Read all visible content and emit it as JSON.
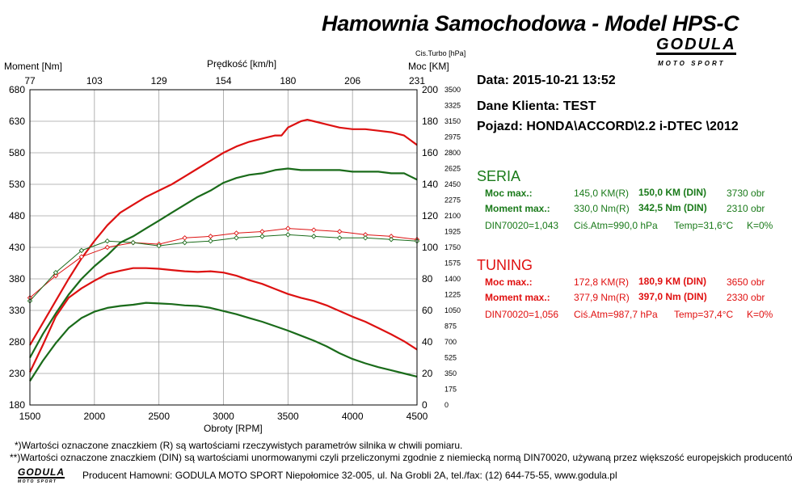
{
  "header": {
    "title": "Hamownia Samochodowa   -   Model HPS-C",
    "logo_word": "GODULA",
    "logo_sub": "MOTO SPORT"
  },
  "chart_data": {
    "type": "line",
    "x_axis": {
      "label": "Obroty [RPM]",
      "min": 1500,
      "max": 4500,
      "ticks": [
        "1500",
        "2000",
        "2500",
        "3000",
        "3500",
        "4000",
        "4500"
      ]
    },
    "top_axis": {
      "label": "Prędkość [km/h]",
      "ticks": [
        "77",
        "103",
        "129",
        "154",
        "180",
        "206",
        "231"
      ]
    },
    "left_axis": {
      "label": "Moment [Nm]",
      "min": 180,
      "max": 680,
      "ticks": [
        "680",
        "630",
        "580",
        "530",
        "480",
        "430",
        "380",
        "330",
        "280",
        "230",
        "180"
      ]
    },
    "right_axis": {
      "label": "Moc [KM]",
      "min": 0,
      "max": 200,
      "ticks": [
        "200",
        "180",
        "160",
        "140",
        "120",
        "100",
        "80",
        "60",
        "40",
        "20",
        "0"
      ]
    },
    "turbo_axis": {
      "label": "Cis.Turbo [hPa]",
      "ticks": [
        "3500",
        "3325",
        "3150",
        "2975",
        "2800",
        "2625",
        "2450",
        "2275",
        "2100",
        "1925",
        "1750",
        "1575",
        "1400",
        "1225",
        "1050",
        "875",
        "700",
        "525",
        "350",
        "175",
        "0"
      ]
    },
    "grid": true,
    "series": [
      {
        "name": "",
        "color": "#dd1111",
        "axis": "power",
        "marker": "none",
        "x": [
          1500,
          1600,
          1700,
          1800,
          1900,
          2000,
          2100,
          2200,
          2300,
          2400,
          2500,
          2600,
          2700,
          2800,
          2900,
          3000,
          3100,
          3200,
          3300,
          3400,
          3450,
          3500,
          3600,
          3650,
          3700,
          3800,
          3900,
          4000,
          4100,
          4200,
          4300,
          4400,
          4500
        ],
        "y": [
          38,
          52,
          66,
          80,
          93,
          104,
          114,
          122,
          127,
          132,
          136,
          140,
          145,
          150,
          155,
          160,
          164,
          167,
          169,
          171,
          171,
          176,
          180,
          181,
          180,
          178,
          176,
          175,
          175,
          174,
          173,
          171,
          165
        ]
      },
      {
        "name": "",
        "color": "#1a6b1a",
        "axis": "power",
        "marker": "none",
        "x": [
          1500,
          1600,
          1700,
          1800,
          1900,
          2000,
          2100,
          2200,
          2300,
          2400,
          2500,
          2600,
          2700,
          2800,
          2900,
          3000,
          3100,
          3200,
          3300,
          3400,
          3500,
          3600,
          3700,
          3800,
          3900,
          4000,
          4100,
          4200,
          4300,
          4400,
          4500
        ],
        "y": [
          30,
          45,
          58,
          70,
          80,
          88,
          95,
          103,
          107,
          112,
          117,
          122,
          127,
          132,
          136,
          141,
          144,
          146,
          147,
          149,
          150,
          149,
          149,
          149,
          149,
          148,
          148,
          148,
          147,
          147,
          143
        ]
      },
      {
        "name": "",
        "color": "#dd1111",
        "axis": "torque",
        "marker": "none",
        "x": [
          1500,
          1600,
          1700,
          1800,
          1900,
          2000,
          2100,
          2200,
          2300,
          2400,
          2500,
          2600,
          2700,
          2800,
          2900,
          3000,
          3100,
          3200,
          3300,
          3400,
          3500,
          3600,
          3700,
          3800,
          3900,
          4000,
          4100,
          4200,
          4300,
          4400,
          4500
        ],
        "y": [
          232,
          275,
          320,
          350,
          365,
          377,
          388,
          393,
          397,
          397,
          396,
          394,
          392,
          391,
          392,
          390,
          385,
          378,
          372,
          364,
          356,
          350,
          345,
          338,
          329,
          320,
          312,
          302,
          292,
          281,
          268
        ]
      },
      {
        "name": "",
        "color": "#1a6b1a",
        "axis": "torque",
        "marker": "none",
        "x": [
          1500,
          1600,
          1700,
          1800,
          1900,
          2000,
          2100,
          2200,
          2300,
          2400,
          2500,
          2600,
          2700,
          2800,
          2900,
          3000,
          3100,
          3200,
          3300,
          3400,
          3500,
          3600,
          3700,
          3800,
          3900,
          4000,
          4100,
          4200,
          4300,
          4400,
          4500
        ],
        "y": [
          218,
          250,
          278,
          302,
          318,
          328,
          334,
          337,
          339,
          342,
          341,
          340,
          338,
          337,
          334,
          329,
          324,
          318,
          312,
          305,
          298,
          290,
          282,
          273,
          262,
          253,
          246,
          240,
          235,
          230,
          225
        ]
      },
      {
        "name": "",
        "color": "#dd1111",
        "axis": "power",
        "marker": "diamond",
        "x": [
          1500,
          1700,
          1900,
          2100,
          2300,
          2500,
          2700,
          2900,
          3100,
          3300,
          3500,
          3700,
          3900,
          4100,
          4300,
          4500
        ],
        "y": [
          68,
          82,
          94,
          100,
          103,
          102,
          106,
          107,
          109,
          110,
          112,
          111,
          110,
          108,
          107,
          105
        ]
      },
      {
        "name": "",
        "color": "#1a6b1a",
        "axis": "power",
        "marker": "diamond",
        "x": [
          1500,
          1700,
          1900,
          2100,
          2300,
          2500,
          2700,
          2900,
          3100,
          3300,
          3500,
          3700,
          3900,
          4100,
          4300,
          4500
        ],
        "y": [
          66,
          84,
          98,
          104,
          103,
          101,
          103,
          104,
          106,
          107,
          108,
          107,
          106,
          106,
          105,
          104
        ]
      }
    ]
  },
  "info": {
    "date": "Data: 2015-10-21  13:52",
    "client": "Dane Klienta: TEST",
    "vehicle": "Pojazd: HONDA\\ACCORD\\2.2 i-DTEC \\2012"
  },
  "seria": {
    "heading": "SERIA",
    "power_label": "Moc max.:",
    "power_r": "145,0 KM(R)",
    "power_din": "150,0 KM (DIN)",
    "power_rpm": "3730 obr",
    "torque_label": "Moment max.:",
    "torque_r": "330,0 Nm(R)",
    "torque_din": "342,5 Nm (DIN)",
    "torque_rpm": "2310 obr",
    "din": "DIN70020=1,043",
    "atm": "Ciś.Atm=990,0 hPa",
    "temp": "Temp=31,6°C",
    "k": "K=0%"
  },
  "tuning": {
    "heading": "TUNING",
    "power_label": "Moc max.:",
    "power_r": "172,8 KM(R)",
    "power_din": "180,9 KM (DIN)",
    "power_rpm": "3650 obr",
    "torque_label": "Moment max.:",
    "torque_r": "377,9 Nm(R)",
    "torque_din": "397,0 Nm (DIN)",
    "torque_rpm": "2330 obr",
    "din": "DIN70020=1,056",
    "atm": "Ciś.Atm=987,7 hPa",
    "temp": "Temp=37,4°C",
    "k": "K=0%"
  },
  "colors": {
    "seria": "#1a7a1a",
    "tuning": "#e01010"
  },
  "footer": {
    "note1": "*)Wartości oznaczone znaczkiem (R) są wartościami rzeczywistych parametrów silnika w chwili pomiaru.",
    "note2": "**)Wartości oznaczone znaczkiem (DIN) są wartościami unormowanymi czyli przeliczonymi zgodnie z niemiecką normą DIN70020, używaną przez większość europejskich producentów.",
    "logo_word": "GODULA",
    "logo_sub": "MOTO SPORT",
    "producer": "Producent Hamowni: GODULA MOTO SPORT Niepołomice 32-005, ul. Na Grobli 2A, tel./fax: (12) 644-75-55, www.godula.pl"
  }
}
